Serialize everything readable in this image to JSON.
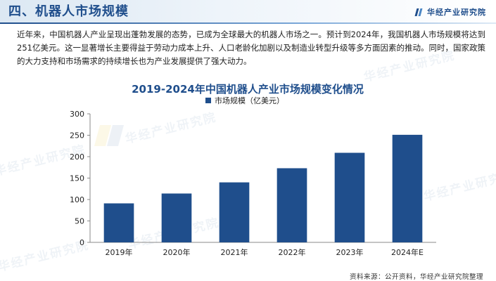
{
  "header": {
    "section_title": "四、机器人市场规模",
    "brand": "华经产业研究院"
  },
  "intro_text": "近年来，中国机器人产业呈现出蓬勃发展的态势，已成为全球最大的机器人市场之一。预计到2024年，我国机器人市场规模将达到251亿美元。这一显著增长主要得益于劳动力成本上升、人口老龄化加剧以及制造业转型升级等多方面因素的推动。同时，国家政策的大力支持和市场需求的持续增长也为产业发展提供了强大动力。",
  "watermark_text": "华经产业研究院",
  "source": "资料来源：公开资料，华经产业研究院整理",
  "chart_data": {
    "type": "bar",
    "title": "2019-2024年中国机器人产业市场规模变化情况",
    "categories": [
      "2019年",
      "2020年",
      "2021年",
      "2022年",
      "2023年",
      "2024年E"
    ],
    "series": [
      {
        "name": "市场规模（亿美元）",
        "values": [
          91,
          114,
          140,
          173,
          209,
          251
        ]
      }
    ],
    "ylim": [
      0,
      300
    ],
    "yticks": [
      0,
      50,
      100,
      150,
      200,
      250,
      300
    ],
    "grid": false,
    "legend_position": "top",
    "bar_color": "#1f4e8c",
    "title_color": "#1f4e8c"
  }
}
